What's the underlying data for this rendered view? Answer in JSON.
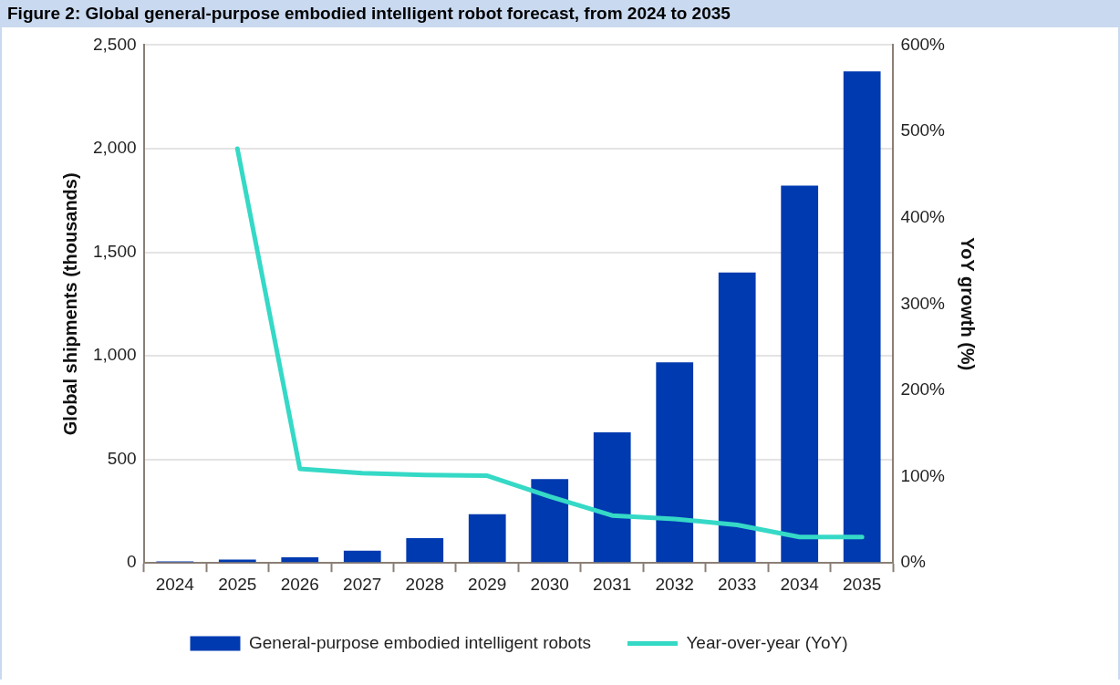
{
  "chart_data": {
    "type": "bar",
    "title": "Figure 2: Global general-purpose embodied intelligent robot forecast, from 2024 to 2035",
    "categories": [
      "2024",
      "2025",
      "2026",
      "2027",
      "2028",
      "2029",
      "2030",
      "2031",
      "2032",
      "2033",
      "2034",
      "2035"
    ],
    "series": [
      {
        "name": "General-purpose embodied intelligent robots",
        "color": "#003ab0",
        "values": [
          8,
          16,
          27,
          59,
          120,
          235,
          405,
          630,
          968,
          1402,
          1821,
          2373
        ]
      },
      {
        "name": "Year-over-year (YoY)",
        "type": "line",
        "axis": "y2",
        "color": "#35d9c6",
        "values": [
          null,
          480,
          109,
          104,
          102,
          101,
          77,
          55,
          51,
          44,
          30,
          30
        ]
      }
    ],
    "ylabel": "Global shipments (thousands)",
    "y2label": "YoY growth (%)",
    "ylim": [
      0,
      2500
    ],
    "yticks": [
      0,
      500,
      {
        "value": 1000,
        "label": "1,000"
      },
      {
        "value": 1500,
        "label": "1,500"
      },
      {
        "value": 2000,
        "label": "2,000"
      },
      {
        "value": 2500,
        "label": "2,500"
      }
    ],
    "y2lim": [
      0,
      600
    ],
    "y2ticks": [
      {
        "value": 0,
        "label": "0%"
      },
      {
        "value": 100,
        "label": "100%"
      },
      {
        "value": 200,
        "label": "200%"
      },
      {
        "value": 300,
        "label": "300%"
      },
      {
        "value": 400,
        "label": "400%"
      },
      {
        "value": 500,
        "label": "500%"
      },
      {
        "value": 600,
        "label": "600%"
      }
    ],
    "grid": "y",
    "legend": "bottom",
    "marker": "none"
  }
}
